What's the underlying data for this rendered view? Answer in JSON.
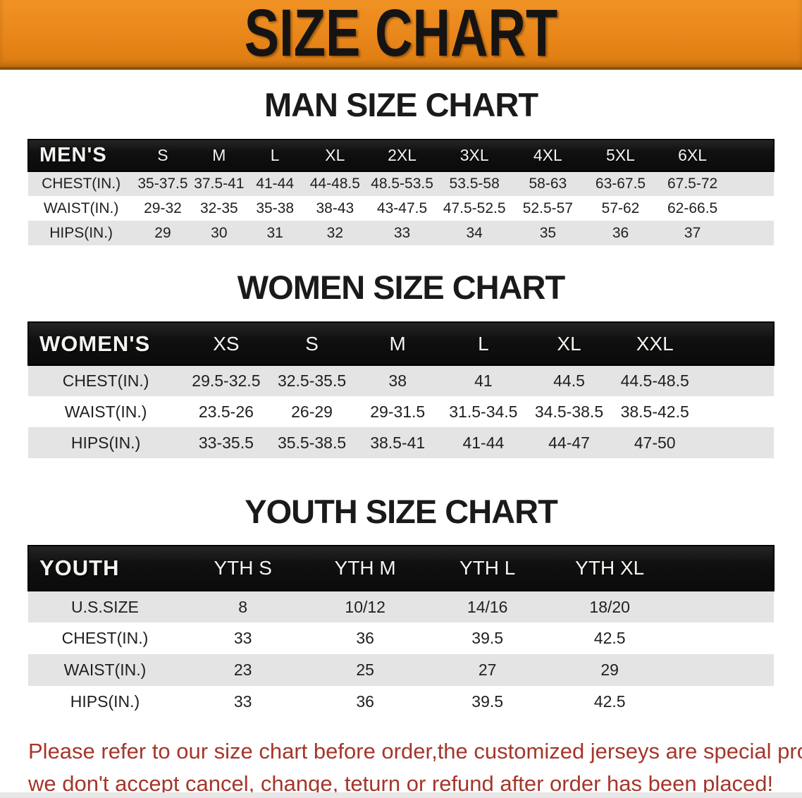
{
  "banner": {
    "title": "SIZE CHART"
  },
  "colors": {
    "banner_orange": "#E8861A",
    "header_black": "#141414",
    "row_stripe_gray": "#E4E4E4",
    "notice_red": "#A5362A"
  },
  "sections": [
    {
      "heading": "MAN SIZE CHART",
      "table": {
        "label": "MEN'S",
        "columns": [
          "S",
          "M",
          "L",
          "XL",
          "2XL",
          "3XL",
          "4XL",
          "5XL",
          "6XL"
        ],
        "rows": [
          {
            "label": "CHEST(IN.)",
            "values": [
              "35-37.5",
              "37.5-41",
              "41-44",
              "44-48.5",
              "48.5-53.5",
              "53.5-58",
              "58-63",
              "63-67.5",
              "67.5-72"
            ]
          },
          {
            "label": "WAIST(IN.)",
            "values": [
              "29-32",
              "32-35",
              "35-38",
              "38-43",
              "43-47.5",
              "47.5-52.5",
              "52.5-57",
              "57-62",
              "62-66.5"
            ]
          },
          {
            "label": "HIPS(IN.)",
            "values": [
              "29",
              "30",
              "31",
              "32",
              "33",
              "34",
              "35",
              "36",
              "37"
            ]
          }
        ]
      }
    },
    {
      "heading": "WOMEN SIZE CHART",
      "table": {
        "label": "WOMEN'S",
        "columns": [
          "XS",
          "S",
          "M",
          "L",
          "XL",
          "XXL"
        ],
        "rows": [
          {
            "label": "CHEST(IN.)",
            "values": [
              "29.5-32.5",
              "32.5-35.5",
              "38",
              "41",
              "44.5",
              "44.5-48.5"
            ]
          },
          {
            "label": "WAIST(IN.)",
            "values": [
              "23.5-26",
              "26-29",
              "29-31.5",
              "31.5-34.5",
              "34.5-38.5",
              "38.5-42.5"
            ]
          },
          {
            "label": "HIPS(IN.)",
            "values": [
              "33-35.5",
              "35.5-38.5",
              "38.5-41",
              "41-44",
              "44-47",
              "47-50"
            ]
          }
        ]
      }
    },
    {
      "heading": "YOUTH SIZE CHART",
      "table": {
        "label": "YOUTH",
        "columns": [
          "YTH S",
          "YTH M",
          "YTH L",
          "YTH XL"
        ],
        "rows": [
          {
            "label": "U.S.SIZE",
            "values": [
              "8",
              "10/12",
              "14/16",
              "18/20"
            ]
          },
          {
            "label": "CHEST(IN.)",
            "values": [
              "33",
              "36",
              "39.5",
              "42.5"
            ]
          },
          {
            "label": "WAIST(IN.)",
            "values": [
              "23",
              "25",
              "27",
              "29"
            ]
          },
          {
            "label": "HIPS(IN.)",
            "values": [
              "33",
              "36",
              "39.5",
              "42.5"
            ]
          }
        ]
      }
    }
  ],
  "notice": {
    "lines": [
      "Please refer to our size chart before order,the customized jerseys are special products,",
      "we don't accept cancel, change, teturn or refund after order has been placed!"
    ]
  }
}
